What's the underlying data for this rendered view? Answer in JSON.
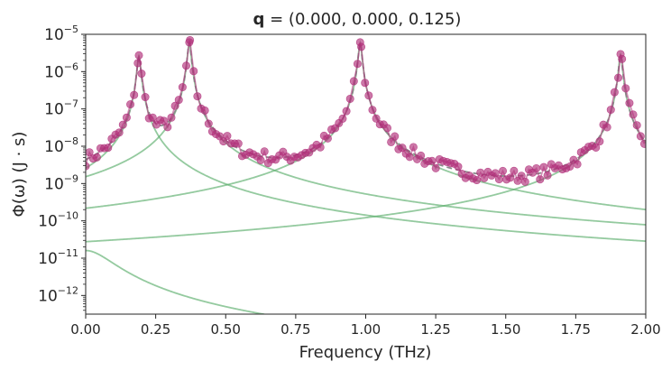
{
  "chart_data": {
    "type": "line",
    "title_bold": "q",
    "title_rest": " = (0.000, 0.000, 0.125)",
    "xlabel": "Frequency (THz)",
    "ylabel": "Φ(ω) (J · s)",
    "xlim": [
      0.0,
      2.0
    ],
    "ylim_exp": [
      -12.5,
      -5
    ],
    "yscale": "log",
    "x_ticks": [
      "0.00",
      "0.25",
      "0.50",
      "0.75",
      "1.00",
      "1.25",
      "1.50",
      "1.75",
      "2.00"
    ],
    "y_tick_exponents": [
      -12,
      -11,
      -10,
      -9,
      -8,
      -7,
      -6,
      -5
    ],
    "grid": false,
    "colors": {
      "points": "#b0307a",
      "points_line": "#b0307a",
      "components": "#5aad6b",
      "total_fit": "#8a8a8a",
      "axes": "#262626"
    },
    "peaks": [
      {
        "center": 0.19,
        "amplitude": 2.6e-06,
        "width": 0.006
      },
      {
        "center": 0.37,
        "amplitude": 5.8e-06,
        "width": 0.006
      },
      {
        "center": 0.98,
        "amplitude": 5.8e-06,
        "width": 0.006
      },
      {
        "center": 1.91,
        "amplitude": 2.8e-06,
        "width": 0.006
      }
    ],
    "component_low_freq": {
      "center": 0.0,
      "amplitude": 1.6e-11,
      "width": 0.09
    },
    "observed_step": 0.0133
  }
}
